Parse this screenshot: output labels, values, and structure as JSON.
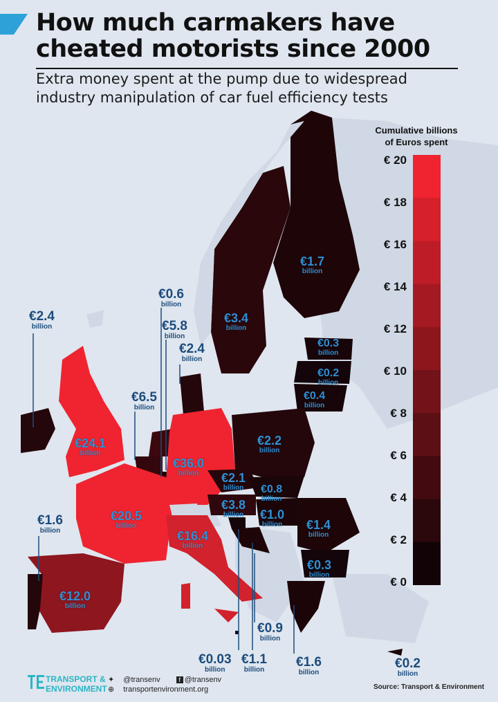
{
  "header": {
    "title_line1": "How much carmakers have",
    "title_line2": "cheated motorists since 2000",
    "subtitle_line1": "Extra money spent at the pump due to widespread",
    "subtitle_line2": "industry manipulation of car fuel efficiency tests"
  },
  "legend": {
    "title_line1": "Cumulative billions",
    "title_line2": "of Euros spent",
    "ticks": [
      "€ 20",
      "€ 18",
      "€ 16",
      "€ 14",
      "€ 12",
      "€ 10",
      "€ 8",
      "€ 6",
      "€ 4",
      "€ 2",
      "€ 0"
    ],
    "min": 0,
    "max": 20,
    "color_low": "#120406",
    "color_high": "#ef2430"
  },
  "countries": [
    {
      "name": "Ireland",
      "value": "€2.4",
      "unit": "billion"
    },
    {
      "name": "United Kingdom",
      "value": "€24.1",
      "unit": "billion"
    },
    {
      "name": "Luxembourg",
      "value": "€0.6",
      "unit": "billion"
    },
    {
      "name": "Belgium",
      "value": "€5.8",
      "unit": "billion"
    },
    {
      "name": "Denmark",
      "value": "€2.4",
      "unit": "billion"
    },
    {
      "name": "Netherlands",
      "value": "€6.5",
      "unit": "billion"
    },
    {
      "name": "Germany",
      "value": "€36.0",
      "unit": "billion"
    },
    {
      "name": "France",
      "value": "€20.5",
      "unit": "billion"
    },
    {
      "name": "Portugal",
      "value": "€1.6",
      "unit": "billion"
    },
    {
      "name": "Spain",
      "value": "€12.0",
      "unit": "billion"
    },
    {
      "name": "Italy",
      "value": "€16.4",
      "unit": "billion"
    },
    {
      "name": "Sweden",
      "value": "€3.4",
      "unit": "billion"
    },
    {
      "name": "Finland",
      "value": "€1.7",
      "unit": "billion"
    },
    {
      "name": "Estonia",
      "value": "€0.3",
      "unit": "billion"
    },
    {
      "name": "Latvia",
      "value": "€0.2",
      "unit": "billion"
    },
    {
      "name": "Lithuania",
      "value": "€0.4",
      "unit": "billion"
    },
    {
      "name": "Poland",
      "value": "€2.2",
      "unit": "billion"
    },
    {
      "name": "Czech Republic",
      "value": "€2.1",
      "unit": "billion"
    },
    {
      "name": "Slovakia",
      "value": "€0.8",
      "unit": "billion"
    },
    {
      "name": "Austria",
      "value": "€3.8",
      "unit": "billion"
    },
    {
      "name": "Hungary",
      "value": "€1.0",
      "unit": "billion"
    },
    {
      "name": "Romania",
      "value": "€1.4",
      "unit": "billion"
    },
    {
      "name": "Bulgaria",
      "value": "€0.3",
      "unit": "billion"
    },
    {
      "name": "Slovenia",
      "value": "€0.03",
      "unit": "billion"
    },
    {
      "name": "Croatia",
      "value": "€1.1",
      "unit": "billion"
    },
    {
      "name": "Malta",
      "value": "€0.9",
      "unit": "billion"
    },
    {
      "name": "Greece",
      "value": "€1.6",
      "unit": "billion"
    },
    {
      "name": "Cyprus",
      "value": "€0.2",
      "unit": "billion"
    }
  ],
  "footer": {
    "org_line1": "TRANSPORT &",
    "org_line2": "ENVIRONMENT",
    "twitter": "@transenv",
    "facebook": "@transenv",
    "website": "transportenvironment.org",
    "source": "Source: Transport & Environment"
  }
}
